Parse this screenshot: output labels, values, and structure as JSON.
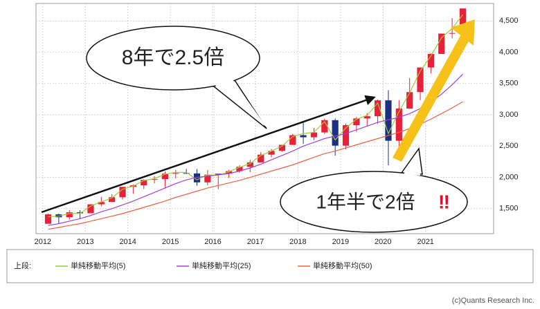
{
  "chart_data": {
    "type": "candlestick",
    "x": [
      2012.125,
      2012.375,
      2012.625,
      2012.875,
      2013.125,
      2013.375,
      2013.625,
      2013.875,
      2014.125,
      2014.375,
      2014.625,
      2014.875,
      2015.125,
      2015.375,
      2015.625,
      2015.875,
      2016.125,
      2016.375,
      2016.625,
      2016.875,
      2017.125,
      2017.375,
      2017.625,
      2017.875,
      2018.125,
      2018.375,
      2018.625,
      2018.875,
      2019.125,
      2019.375,
      2019.625,
      2019.875,
      2020.125,
      2020.375,
      2020.625,
      2020.875,
      2021.125,
      2021.375,
      2021.625,
      2021.875
    ],
    "open": [
      1258,
      1408,
      1362,
      1441,
      1426,
      1569,
      1606,
      1682,
      1848,
      1872,
      1960,
      1972,
      2059,
      2068,
      2063,
      1920,
      2044,
      2060,
      2099,
      2168,
      2239,
      2363,
      2423,
      2519,
      2674,
      2641,
      2718,
      2914,
      2507,
      2834,
      2942,
      2977,
      3231,
      2585,
      3100,
      3363,
      3756,
      3973,
      4298,
      4308
    ],
    "high": [
      1420,
      1422,
      1475,
      1475,
      1570,
      1687,
      1730,
      1849,
      1883,
      1968,
      2019,
      2093,
      2119,
      2135,
      2133,
      2116,
      2044,
      2121,
      2194,
      2278,
      2401,
      2454,
      2519,
      2694,
      2873,
      2791,
      2940,
      2940,
      2860,
      2964,
      3028,
      3247,
      3394,
      3233,
      3588,
      3760,
      3983,
      4300,
      4546,
      4700
    ],
    "low": [
      1258,
      1267,
      1325,
      1343,
      1426,
      1536,
      1604,
      1646,
      1737,
      1814,
      1904,
      1820,
      1981,
      2057,
      1867,
      1872,
      1810,
      1992,
      2074,
      2084,
      2245,
      2322,
      2406,
      2519,
      2533,
      2594,
      2692,
      2347,
      2444,
      2729,
      2822,
      2855,
      2192,
      2447,
      3100,
      3234,
      3662,
      3973,
      4223,
      4278
    ],
    "close": [
      1408,
      1362,
      1441,
      1426,
      1569,
      1606,
      1682,
      1848,
      1872,
      1960,
      1972,
      2059,
      2068,
      2063,
      1920,
      2044,
      2060,
      2099,
      2168,
      2239,
      2363,
      2423,
      2519,
      2674,
      2641,
      2718,
      2914,
      2507,
      2834,
      2942,
      2977,
      3231,
      2585,
      3100,
      3363,
      3756,
      3973,
      4298,
      4308,
      4700
    ],
    "up_color": "#e8203a",
    "down_color": "#1c2f80",
    "series": [
      {
        "name": "単純移動平均(5)",
        "color": "#9acd32",
        "values": [
          1370,
          1380,
          1420,
          1425,
          1540,
          1610,
          1670,
          1810,
          1860,
          1950,
          1980,
          2050,
          2080,
          2080,
          1960,
          2040,
          2030,
          2090,
          2160,
          2220,
          2350,
          2420,
          2500,
          2650,
          2700,
          2720,
          2890,
          2600,
          2790,
          2930,
          2990,
          3190,
          2700,
          3050,
          3350,
          3700,
          3940,
          4230,
          4380,
          4600
        ]
      },
      {
        "name": "単純移動平均(25)",
        "color": "#a040e0",
        "values": [
          1230,
          1260,
          1300,
          1340,
          1390,
          1450,
          1500,
          1560,
          1620,
          1690,
          1760,
          1830,
          1900,
          1960,
          2000,
          2020,
          2040,
          2060,
          2100,
          2150,
          2210,
          2280,
          2350,
          2420,
          2500,
          2560,
          2620,
          2660,
          2700,
          2760,
          2820,
          2880,
          2920,
          2960,
          3020,
          3100,
          3200,
          3330,
          3480,
          3650
        ]
      },
      {
        "name": "単純移動平均(50)",
        "color": "#f06040",
        "values": [
          1170,
          1200,
          1230,
          1260,
          1300,
          1340,
          1380,
          1420,
          1470,
          1520,
          1570,
          1620,
          1680,
          1730,
          1780,
          1830,
          1870,
          1910,
          1950,
          2000,
          2050,
          2100,
          2150,
          2200,
          2260,
          2320,
          2380,
          2420,
          2470,
          2520,
          2570,
          2620,
          2670,
          2720,
          2780,
          2850,
          2930,
          3020,
          3110,
          3210
        ]
      }
    ],
    "legend_title": "上段:",
    "xlim": [
      2011.84,
      2022.6
    ],
    "xticks": [
      2012,
      2013,
      2014,
      2015,
      2016,
      2017,
      2018,
      2019,
      2020,
      2021
    ],
    "ylim": [
      1100,
      4780
    ],
    "yticks": [
      {
        "value": 1500,
        "label": "1,500"
      },
      {
        "value": 2000,
        "label": "2,000"
      },
      {
        "value": 2500,
        "label": "2,500"
      },
      {
        "value": 3000,
        "label": "3,000"
      },
      {
        "value": 3500,
        "label": "3,500"
      },
      {
        "value": 4000,
        "label": "4,000"
      },
      {
        "value": 4500,
        "label": "4,500"
      }
    ],
    "grid": true,
    "annotations": [
      "8年で2.5倍",
      "1年半で2倍"
    ],
    "emphasis": "‼",
    "credit": "(c)Quants Research Inc."
  }
}
